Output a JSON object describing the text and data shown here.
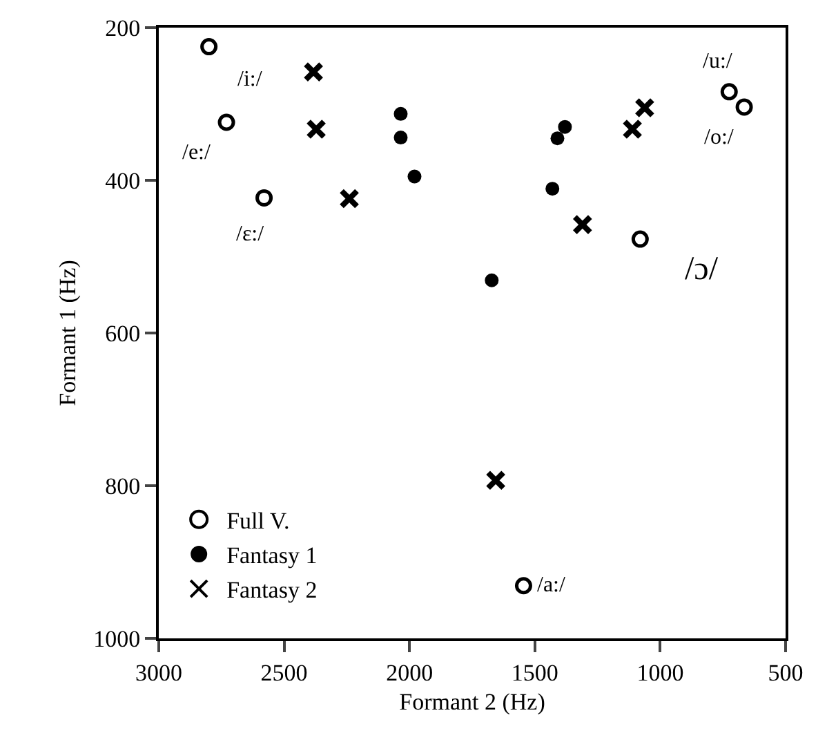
{
  "chart_data": {
    "type": "scatter",
    "xlabel": "Formant 2 (Hz)",
    "ylabel": "Formant 1 (Hz)",
    "xlim": [
      3000,
      500
    ],
    "xticks": [
      3000,
      2500,
      2000,
      1500,
      1000,
      500
    ],
    "ylim": [
      1000,
      200
    ],
    "yticks": [
      200,
      400,
      600,
      800,
      1000
    ],
    "grid": false,
    "legend": "bottom left",
    "series": [
      {
        "name": "Full V.",
        "color": "#000000",
        "marker": "circle-open",
        "x": [
          2800,
          2730,
          2580,
          725,
          665,
          1080,
          1545
        ],
        "values": [
          225,
          324,
          423,
          284,
          304,
          477,
          931
        ]
      },
      {
        "name": "Fantasy 1",
        "color": "#000000",
        "marker": "circle",
        "x": [
          2035,
          2035,
          1980,
          1410,
          1380,
          1430,
          1672
        ],
        "values": [
          313,
          344,
          395,
          345,
          330,
          411,
          531
        ]
      },
      {
        "name": "Fantasy 2",
        "color": "#000000",
        "marker": "cross",
        "x": [
          2383,
          2372,
          2240,
          1062,
          1111,
          1310,
          1656
        ],
        "values": [
          258,
          333,
          424,
          305,
          333,
          458,
          793
        ]
      }
    ],
    "annotations": [
      {
        "text": "/i:/",
        "x": 2800,
        "y": 225
      },
      {
        "text": "/e:/",
        "x": 2730,
        "y": 324
      },
      {
        "text": "/ɛ:/",
        "x": 2580,
        "y": 423
      },
      {
        "text": "/u:/",
        "x": 725,
        "y": 284
      },
      {
        "text": "/o:/",
        "x": 665,
        "y": 304
      },
      {
        "text": "/ɔ/",
        "x": 1080,
        "y": 477
      },
      {
        "text": "/a:/",
        "x": 1545,
        "y": 931
      }
    ]
  }
}
